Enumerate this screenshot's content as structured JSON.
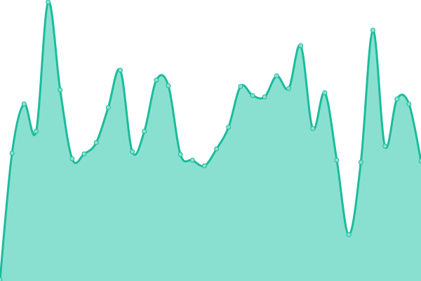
{
  "chart_data": {
    "type": "area",
    "x": [
      0,
      1,
      2,
      3,
      4,
      5,
      6,
      7,
      8,
      9,
      10,
      11,
      12,
      13,
      14,
      15,
      16,
      17,
      18,
      19,
      20,
      21,
      22,
      23,
      24,
      25,
      26,
      27,
      28,
      29,
      30,
      31,
      32,
      33,
      34,
      35
    ],
    "values": [
      2,
      182,
      252,
      213,
      397,
      272,
      174,
      181,
      197,
      247,
      300,
      184,
      213,
      286,
      278,
      180,
      172,
      164,
      188,
      219,
      277,
      264,
      262,
      292,
      274,
      335,
      217,
      268,
      172,
      66,
      169,
      357,
      192,
      259,
      252,
      171
    ],
    "ylim": [
      0,
      400
    ],
    "grid": false,
    "axes_visible": false,
    "curve": "smooth",
    "colors": {
      "line": "#1abc9c",
      "fill": "#8ae0d0",
      "point_fill": "#8ae0d0",
      "point_stroke": "#1abc9c"
    }
  }
}
